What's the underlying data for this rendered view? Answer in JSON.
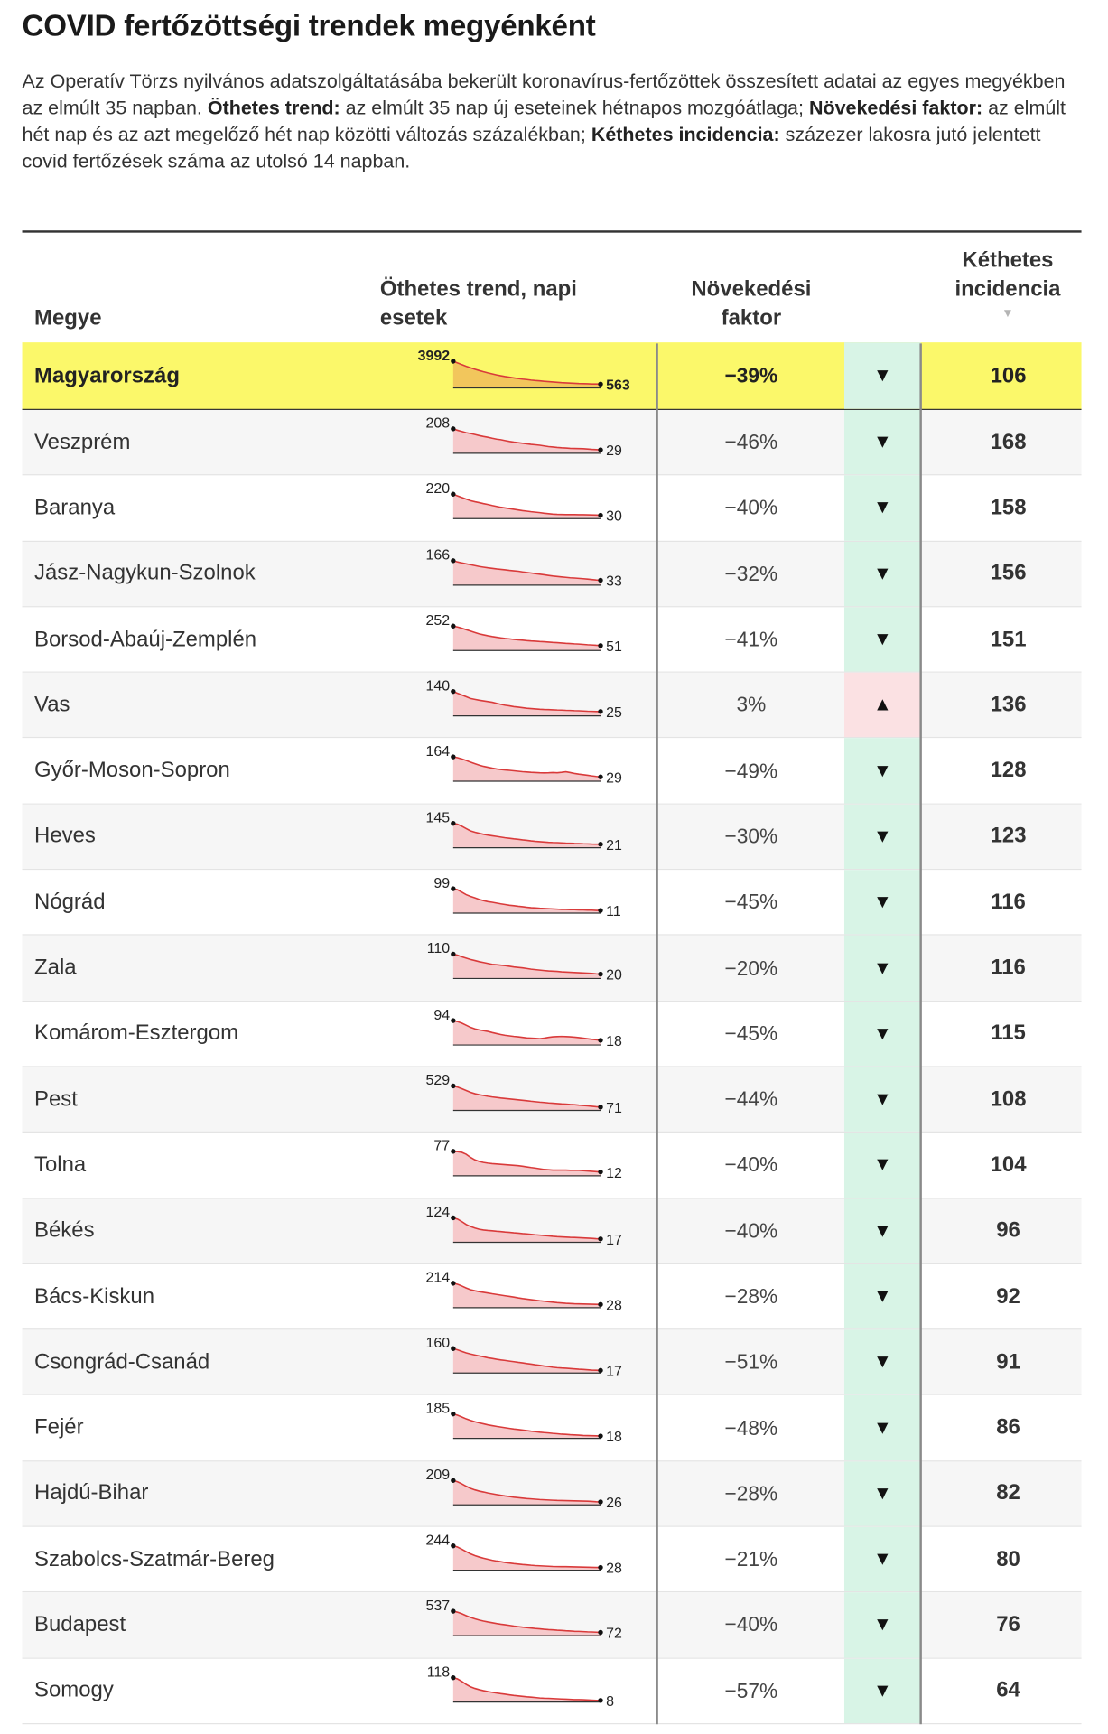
{
  "title": "COVID fertőzöttségi trendek megyénként",
  "description": {
    "intro": "Az Operatív Törzs nyilvános adatszolgáltatásába bekerült koronavírus-fertőzöttek összesített adatai az egyes megyékben az elmúlt 35 napban.",
    "trend_term": "Öthetes trend:",
    "trend_def": "az elmúlt 35 nap új eseteinek hétnapos mozgóátlaga;",
    "factor_term": "Növekedési faktor:",
    "factor_def": "az elmúlt hét nap és az azt megelőző hét nap közötti változás százalékban;",
    "incidence_term": "Kéthetes incidencia:",
    "incidence_def": "százezer lakosra jutó jelentett covid fertőzések száma az utolsó 14 napban."
  },
  "headers": {
    "megye": "Megye",
    "trend": "Öthetes trend, napi esetek",
    "faktor": "Növekedési faktor",
    "incidence": "Kéthetes incidencia",
    "sort_indicator": "▼"
  },
  "colors": {
    "highlight_row": "#fbf86a",
    "down_cell": "#d8f4e6",
    "up_cell": "#fbe1e3",
    "spark_line": "#d93a3a",
    "spark_fill": "#f6c9cb",
    "spark_fill_highlight": "#f2c65c"
  },
  "chart_data": {
    "type": "table",
    "columns": [
      "Megye",
      "Öthetes trend, napi esetek",
      "Növekedési faktor",
      "Kéthetes incidencia"
    ],
    "rows": [
      {
        "name": "Magyarország",
        "start": 3992,
        "end": 563,
        "factor": "−39%",
        "direction": "down",
        "arrow": "▼",
        "incidence": 106,
        "highlight": true,
        "trend": [
          3992,
          3750,
          3480,
          3230,
          3010,
          2800,
          2600,
          2420,
          2250,
          2090,
          1950,
          1820,
          1700,
          1590,
          1490,
          1400,
          1320,
          1240,
          1170,
          1100,
          1040,
          980,
          930,
          880,
          830,
          790,
          750,
          715,
          680,
          650,
          630,
          610,
          590,
          575,
          563
        ]
      },
      {
        "name": "Veszprém",
        "start": 208,
        "end": 29,
        "factor": "−46%",
        "direction": "down",
        "arrow": "▼",
        "incidence": 168,
        "trend": [
          208,
          196,
          185,
          175,
          168,
          160,
          150,
          143,
          136,
          128,
          120,
          115,
          108,
          100,
          95,
          90,
          85,
          80,
          76,
          72,
          68,
          62,
          57,
          53,
          49,
          46,
          44,
          42,
          41,
          40,
          39,
          36,
          33,
          31,
          29
        ]
      },
      {
        "name": "Baranya",
        "start": 220,
        "end": 30,
        "factor": "−40%",
        "direction": "down",
        "arrow": "▼",
        "incidence": 158,
        "trend": [
          220,
          205,
          190,
          176,
          162,
          152,
          144,
          135,
          127,
          118,
          110,
          102,
          96,
          90,
          84,
          78,
          72,
          67,
          62,
          58,
          54,
          48,
          44,
          40,
          38,
          37,
          36,
          36,
          36,
          35,
          35,
          34,
          33,
          32,
          30
        ]
      },
      {
        "name": "Jász-Nagykun-Szolnok",
        "start": 166,
        "end": 33,
        "factor": "−32%",
        "direction": "down",
        "arrow": "▼",
        "incidence": 156,
        "trend": [
          166,
          158,
          151,
          145,
          139,
          133,
          127,
          122,
          118,
          114,
          110,
          107,
          104,
          100,
          97,
          94,
          90,
          86,
          82,
          78,
          74,
          70,
          66,
          62,
          59,
          56,
          53,
          50,
          48,
          46,
          44,
          41,
          38,
          35,
          33
        ]
      },
      {
        "name": "Borsod-Abaúj-Zemplén",
        "start": 252,
        "end": 51,
        "factor": "−41%",
        "direction": "down",
        "arrow": "▼",
        "incidence": 151,
        "trend": [
          252,
          243,
          230,
          215,
          200,
          186,
          172,
          162,
          152,
          144,
          137,
          131,
          125,
          120,
          115,
          110,
          106,
          102,
          99,
          96,
          93,
          90,
          87,
          84,
          81,
          78,
          75,
          72,
          69,
          66,
          63,
          60,
          57,
          54,
          51
        ]
      },
      {
        "name": "Vas",
        "start": 140,
        "end": 25,
        "factor": "3%",
        "direction": "up",
        "arrow": "▲",
        "incidence": 136,
        "trend": [
          140,
          130,
          120,
          110,
          100,
          95,
          90,
          86,
          82,
          78,
          72,
          66,
          61,
          57,
          53,
          50,
          47,
          44,
          42,
          40,
          38,
          37,
          36,
          35,
          34,
          33,
          32,
          31,
          30,
          29,
          28,
          27,
          26,
          25,
          25
        ]
      },
      {
        "name": "Győr-Moson-Sopron",
        "start": 164,
        "end": 29,
        "factor": "−49%",
        "direction": "down",
        "arrow": "▼",
        "incidence": 128,
        "trend": [
          164,
          158,
          150,
          140,
          128,
          118,
          108,
          100,
          94,
          88,
          83,
          79,
          76,
          73,
          70,
          67,
          64,
          62,
          60,
          58,
          57,
          56,
          57,
          58,
          57,
          60,
          63,
          58,
          52,
          48,
          44,
          40,
          36,
          32,
          29
        ]
      },
      {
        "name": "Heves",
        "start": 145,
        "end": 21,
        "factor": "−30%",
        "direction": "down",
        "arrow": "▼",
        "incidence": 123,
        "trend": [
          145,
          140,
          128,
          114,
          100,
          92,
          86,
          80,
          75,
          71,
          67,
          63,
          59,
          56,
          53,
          50,
          47,
          44,
          41,
          38,
          36,
          34,
          32,
          31,
          30,
          29,
          28,
          27,
          26,
          25,
          24,
          23,
          22,
          21,
          21
        ]
      },
      {
        "name": "Nógrád",
        "start": 99,
        "end": 11,
        "factor": "−45%",
        "direction": "down",
        "arrow": "▼",
        "incidence": 116,
        "trend": [
          99,
          95,
          85,
          75,
          68,
          62,
          56,
          51,
          47,
          44,
          41,
          38,
          35,
          32,
          30,
          28,
          26,
          24,
          22,
          21,
          20,
          19,
          18,
          17,
          16,
          15,
          15,
          14,
          14,
          13,
          13,
          12,
          12,
          11,
          11
        ]
      },
      {
        "name": "Zala",
        "start": 110,
        "end": 20,
        "factor": "−20%",
        "direction": "down",
        "arrow": "▼",
        "incidence": 116,
        "trend": [
          110,
          105,
          98,
          92,
          86,
          81,
          76,
          72,
          68,
          64,
          62,
          60,
          58,
          55,
          52,
          50,
          48,
          45,
          42,
          40,
          38,
          36,
          34,
          33,
          32,
          30,
          29,
          28,
          27,
          26,
          25,
          24,
          23,
          21,
          20
        ]
      },
      {
        "name": "Komárom-Esztergom",
        "start": 94,
        "end": 18,
        "factor": "−45%",
        "direction": "down",
        "arrow": "▼",
        "incidence": 115,
        "trend": [
          94,
          90,
          84,
          76,
          68,
          62,
          58,
          55,
          52,
          48,
          44,
          40,
          37,
          35,
          33,
          31,
          29,
          27,
          26,
          25,
          24,
          26,
          29,
          31,
          32,
          33,
          32,
          31,
          30,
          28,
          26,
          24,
          22,
          20,
          18
        ]
      },
      {
        "name": "Pest",
        "start": 529,
        "end": 71,
        "factor": "−44%",
        "direction": "down",
        "arrow": "▼",
        "incidence": 108,
        "trend": [
          529,
          505,
          468,
          430,
          392,
          360,
          340,
          322,
          306,
          292,
          280,
          268,
          258,
          248,
          238,
          228,
          218,
          208,
          198,
          188,
          178,
          170,
          162,
          154,
          146,
          140,
          134,
          128,
          122,
          114,
          106,
          98,
          88,
          79,
          71
        ]
      },
      {
        "name": "Tolna",
        "start": 77,
        "end": 12,
        "factor": "−40%",
        "direction": "down",
        "arrow": "▼",
        "incidence": 104,
        "trend": [
          77,
          76,
          74,
          68,
          58,
          50,
          45,
          42,
          40,
          38,
          37,
          36,
          35,
          34,
          33,
          32,
          30,
          28,
          26,
          24,
          22,
          20,
          19,
          18,
          18,
          18,
          18,
          17,
          17,
          17,
          16,
          15,
          14,
          13,
          12
        ]
      },
      {
        "name": "Békés",
        "start": 124,
        "end": 17,
        "factor": "−40%",
        "direction": "down",
        "arrow": "▼",
        "incidence": 96,
        "trend": [
          124,
          118,
          105,
          90,
          80,
          72,
          66,
          62,
          60,
          58,
          56,
          54,
          52,
          50,
          48,
          46,
          44,
          42,
          40,
          38,
          36,
          34,
          32,
          30,
          28,
          27,
          26,
          25,
          24,
          23,
          22,
          21,
          20,
          18,
          17
        ]
      },
      {
        "name": "Bács-Kiskun",
        "start": 214,
        "end": 28,
        "factor": "−28%",
        "direction": "down",
        "arrow": "▼",
        "incidence": 92,
        "trend": [
          214,
          205,
          190,
          172,
          158,
          148,
          140,
          134,
          128,
          122,
          116,
          110,
          104,
          98,
          92,
          86,
          80,
          75,
          70,
          65,
          60,
          56,
          52,
          48,
          44,
          41,
          38,
          36,
          34,
          33,
          32,
          31,
          30,
          29,
          28
        ]
      },
      {
        "name": "Csongrád-Csanád",
        "start": 160,
        "end": 17,
        "factor": "−51%",
        "direction": "down",
        "arrow": "▼",
        "incidence": 91,
        "trend": [
          160,
          152,
          142,
          132,
          124,
          118,
          112,
          106,
          100,
          95,
          90,
          86,
          82,
          78,
          74,
          70,
          66,
          62,
          58,
          54,
          50,
          46,
          42,
          38,
          35,
          33,
          31,
          29,
          27,
          25,
          23,
          21,
          19,
          18,
          17
        ]
      },
      {
        "name": "Fejér",
        "start": 185,
        "end": 18,
        "factor": "−48%",
        "direction": "down",
        "arrow": "▼",
        "incidence": 86,
        "trend": [
          185,
          176,
          162,
          148,
          136,
          126,
          118,
          110,
          103,
          97,
          91,
          86,
          81,
          76,
          71,
          67,
          63,
          59,
          55,
          51,
          47,
          44,
          41,
          38,
          35,
          32,
          30,
          28,
          26,
          24,
          22,
          21,
          20,
          19,
          18
        ]
      },
      {
        "name": "Hajdú-Bihar",
        "start": 209,
        "end": 26,
        "factor": "−28%",
        "direction": "down",
        "arrow": "▼",
        "incidence": 82,
        "trend": [
          209,
          198,
          180,
          160,
          142,
          128,
          118,
          110,
          102,
          95,
          88,
          82,
          76,
          71,
          66,
          62,
          58,
          54,
          51,
          48,
          46,
          44,
          42,
          40,
          38,
          37,
          36,
          35,
          34,
          33,
          32,
          31,
          29,
          27,
          26
        ]
      },
      {
        "name": "Szabolcs-Szatmár-Bereg",
        "start": 244,
        "end": 28,
        "factor": "−21%",
        "direction": "down",
        "arrow": "▼",
        "incidence": 80,
        "trend": [
          244,
          232,
          210,
          186,
          164,
          146,
          132,
          120,
          110,
          100,
          92,
          85,
          78,
          72,
          67,
          62,
          58,
          54,
          50,
          47,
          44,
          42,
          40,
          38,
          37,
          36,
          35,
          34,
          33,
          32,
          31,
          30,
          29,
          28,
          28
        ]
      },
      {
        "name": "Budapest",
        "start": 537,
        "end": 72,
        "factor": "−40%",
        "direction": "down",
        "arrow": "▼",
        "incidence": 76,
        "trend": [
          537,
          515,
          480,
          440,
          400,
          368,
          342,
          320,
          300,
          282,
          266,
          252,
          238,
          224,
          210,
          198,
          186,
          175,
          165,
          156,
          148,
          140,
          133,
          126,
          120,
          114,
          108,
          102,
          96,
          92,
          88,
          84,
          80,
          76,
          72
        ]
      },
      {
        "name": "Somogy",
        "start": 118,
        "end": 8,
        "factor": "−57%",
        "direction": "down",
        "arrow": "▼",
        "incidence": 64,
        "trend": [
          118,
          112,
          100,
          86,
          74,
          66,
          60,
          55,
          51,
          47,
          44,
          41,
          38,
          35,
          32,
          30,
          28,
          26,
          24,
          22,
          20,
          19,
          18,
          17,
          16,
          15,
          14,
          13,
          12,
          12,
          11,
          10,
          9,
          8,
          8
        ]
      }
    ]
  }
}
